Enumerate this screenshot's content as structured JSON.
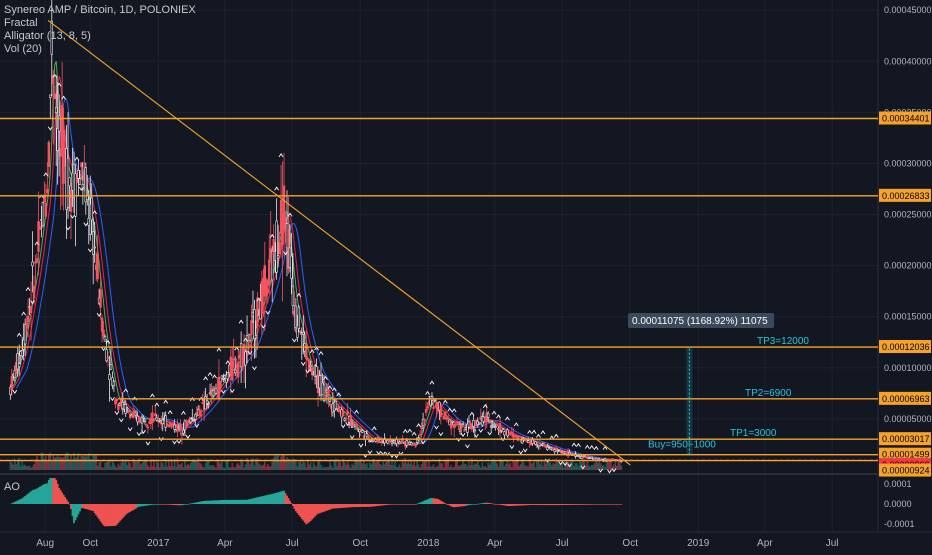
{
  "legend": {
    "title": "Synereo AMP / Bitcoin, 1D, POLONIEX",
    "fractal": "Fractal",
    "alligator": "Alligator (13, 8, 5)",
    "vol": "Vol (20)"
  },
  "ao_label": "AO",
  "chart_data": {
    "type": "candlestick",
    "title": "Synereo AMP / Bitcoin, 1D, POLONIEX",
    "x_ticks": [
      "Aug",
      "Oct",
      "2017",
      "Apr",
      "Jul",
      "Oct",
      "2018",
      "Apr",
      "Jul",
      "Oct",
      "2019",
      "Apr",
      "Jul"
    ],
    "y_ticks": [
      "0.00045000",
      "0.00040000",
      "0.00035000",
      "0.00030000",
      "0.00025000",
      "0.00020000",
      "0.00015000",
      "0.00010000",
      "0.00005000"
    ],
    "ylim": [
      0,
      0.00046
    ],
    "price_series": [
      {
        "x": "2016-06-15",
        "y": 8e-05
      },
      {
        "x": "2016-07-01",
        "y": 0.00012
      },
      {
        "x": "2016-07-20",
        "y": 0.0002
      },
      {
        "x": "2016-08-05",
        "y": 0.00029
      },
      {
        "x": "2016-08-10",
        "y": 0.00042
      },
      {
        "x": "2016-08-20",
        "y": 0.00032
      },
      {
        "x": "2016-09-05",
        "y": 0.00028
      },
      {
        "x": "2016-09-20",
        "y": 0.00029
      },
      {
        "x": "2016-10-05",
        "y": 0.00023
      },
      {
        "x": "2016-10-20",
        "y": 0.00013
      },
      {
        "x": "2016-11-05",
        "y": 7e-05
      },
      {
        "x": "2016-12-01",
        "y": 5e-05
      },
      {
        "x": "2017-01-01",
        "y": 5e-05
      },
      {
        "x": "2017-02-01",
        "y": 4e-05
      },
      {
        "x": "2017-03-01",
        "y": 6e-05
      },
      {
        "x": "2017-04-01",
        "y": 9e-05
      },
      {
        "x": "2017-05-01",
        "y": 0.00012
      },
      {
        "x": "2017-06-01",
        "y": 0.00019
      },
      {
        "x": "2017-06-20",
        "y": 0.00026
      },
      {
        "x": "2017-07-05",
        "y": 0.00016
      },
      {
        "x": "2017-07-25",
        "y": 0.0001
      },
      {
        "x": "2017-08-20",
        "y": 7e-05
      },
      {
        "x": "2017-09-15",
        "y": 5e-05
      },
      {
        "x": "2017-10-15",
        "y": 3e-05
      },
      {
        "x": "2017-11-15",
        "y": 2.8e-05
      },
      {
        "x": "2017-12-15",
        "y": 2.5e-05
      },
      {
        "x": "2018-01-05",
        "y": 7e-05
      },
      {
        "x": "2018-01-25",
        "y": 5e-05
      },
      {
        "x": "2018-02-20",
        "y": 4e-05
      },
      {
        "x": "2018-03-20",
        "y": 5e-05
      },
      {
        "x": "2018-04-20",
        "y": 3.5e-05
      },
      {
        "x": "2018-05-20",
        "y": 2.8e-05
      },
      {
        "x": "2018-06-20",
        "y": 2e-05
      },
      {
        "x": "2018-07-20",
        "y": 1.4e-05
      },
      {
        "x": "2018-08-20",
        "y": 1e-05
      },
      {
        "x": "2018-09-20",
        "y": 9.6e-06
      }
    ],
    "horizontal_levels": [
      {
        "label": "0.00034401",
        "value": 0.00034401,
        "color": "#f7a32a"
      },
      {
        "label": "0.00026833",
        "value": 0.00026833,
        "color": "#f7a32a"
      },
      {
        "label": "0.00012036",
        "value": 0.00012036,
        "color": "#f7a32a"
      },
      {
        "label": "0.00006963",
        "value": 6.963e-05,
        "color": "#f7a32a"
      },
      {
        "label": "0.00003017",
        "value": 3.017e-05,
        "color": "#f7a32a"
      },
      {
        "label": "0.00001499",
        "value": 1.499e-05,
        "color": "#f7a32a"
      },
      {
        "label": "0.00000966",
        "value": 9.66e-06,
        "color": "#f23645"
      },
      {
        "label": "0.00000924",
        "value": 9.24e-06,
        "color": "#f7a32a"
      }
    ],
    "trendline": {
      "from": {
        "x": "2016-08-05",
        "y": 0.00044
      },
      "to": {
        "x": "2018-10-01",
        "y": 5e-06
      }
    },
    "annotations": [
      {
        "text": "TP3=12000",
        "x": "2019-02-01",
        "y": 0.00012036
      },
      {
        "text": "TP2=6900",
        "x": "2019-02-01",
        "y": 6.963e-05
      },
      {
        "text": "TP1=3000",
        "x": "2019-02-01",
        "y": 3.017e-05
      },
      {
        "text": "Buy=950~1000",
        "x": "2018-11-01",
        "y": 1.499e-05
      }
    ],
    "measure_label": "0.00011075 (1168.92%) 11075",
    "ao": {
      "y_ticks": [
        "0.0001",
        "0.0000",
        "-0.0001"
      ],
      "ylim": [
        -0.00014,
        0.00014
      ]
    },
    "colors": {
      "background": "#131722",
      "candle_up": "#f7525f",
      "candle_down": "#e8e8e8",
      "level": "#f7a32a",
      "teal_text": "#26c6da",
      "ao_up": "#26a69a",
      "ao_down": "#ef5350",
      "alligator_jaw": "#2962ff",
      "alligator_teeth": "#e91e63",
      "alligator_lips": "#4caf50"
    }
  }
}
